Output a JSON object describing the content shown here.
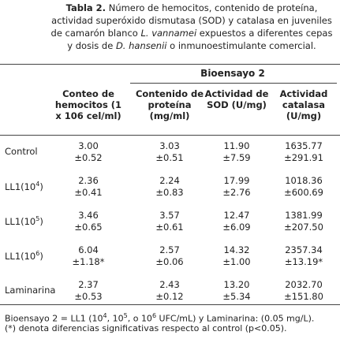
{
  "caption": {
    "label": "Tabla 2.",
    "segments": [
      "Número de hemocitos, contenido de proteína, actividad superóxido dismutasa (SOD) y catalasa en juveniles de camarón blanco ",
      "L. vannamei",
      " expuestos a diferentes cepas y dosis de ",
      "D. hansenii",
      " o inmunoestimulante comercial."
    ]
  },
  "table": {
    "group": "Bioensayo 2",
    "columns": [
      "Conteo de hemocitos (1 x 106 cel/ml)",
      "Contenido de proteína (mg/ml)",
      "Actividad de SOD (U/mg)",
      "Actividad catalasa (U/mg)"
    ],
    "rows": [
      {
        "label": {
          "base": "Control"
        },
        "cells": [
          [
            "3.00",
            "±0.52"
          ],
          [
            "3.03",
            "±0.51"
          ],
          [
            "11.90",
            "±7.59"
          ],
          [
            "1635.77",
            "±291.91"
          ]
        ]
      },
      {
        "label": {
          "base": "LL1(10",
          "sup": "4",
          "end": ")"
        },
        "cells": [
          [
            "2.36",
            "±0.41"
          ],
          [
            "2.24",
            "±0.83"
          ],
          [
            "17.99",
            "±2.76"
          ],
          [
            "1018.36",
            "±600.69"
          ]
        ]
      },
      {
        "label": {
          "base": "LL1(10",
          "sup": "5",
          "end": ")"
        },
        "cells": [
          [
            "3.46",
            "±0.65"
          ],
          [
            "3.57",
            "±0.61"
          ],
          [
            "12.47",
            "±6.09"
          ],
          [
            "1381.99",
            "±207.50"
          ]
        ]
      },
      {
        "label": {
          "base": "LL1(10",
          "sup": "6",
          "end": ")"
        },
        "cells": [
          [
            "6.04",
            "±1.18*"
          ],
          [
            "2.57",
            "±0.06"
          ],
          [
            "14.32",
            "±1.00"
          ],
          [
            "2357.34",
            "±13.19*"
          ]
        ]
      },
      {
        "label": {
          "base": "Laminarina"
        },
        "cells": [
          [
            "2.37",
            "±0.53"
          ],
          [
            "2.43",
            "±0.12"
          ],
          [
            "13.20",
            "±5.34"
          ],
          [
            "2032.70",
            "±151.80"
          ]
        ]
      }
    ]
  },
  "footnotes": [
    [
      "Bioensayo 2 = LL1 (10",
      "4",
      ", 10",
      "5",
      ", o 10",
      "6",
      " UFC/mL) y Laminarina: (0.05 mg/L)."
    ],
    [
      "(*) denota diferencias significativas respecto al control (p<0.05)."
    ]
  ]
}
